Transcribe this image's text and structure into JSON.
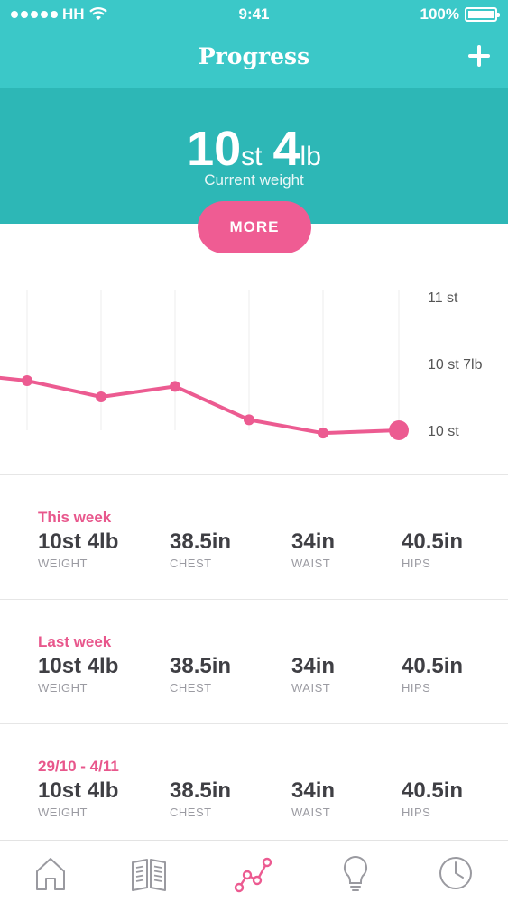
{
  "status_bar": {
    "carrier": "HH",
    "time": "9:41",
    "battery": "100%"
  },
  "nav": {
    "title": "Progress",
    "add_icon": "plus-icon"
  },
  "current": {
    "stones": "10",
    "stones_unit": "st",
    "pounds": "4",
    "pounds_unit": "lb",
    "caption": "Current weight"
  },
  "more_button": "MORE",
  "colors": {
    "teal": "#3bc8c8",
    "teal_dark": "#2db7b6",
    "pink": "#ef5c93",
    "label_pink": "#e8578c"
  },
  "chart_data": {
    "type": "line",
    "y_ticks": [
      "11 st",
      "10 st 7lb",
      "10 st"
    ],
    "ylim": [
      "10 st",
      "11 st"
    ],
    "values_lb": [
      145.6,
      145.2,
      143.5,
      144.6,
      141.1,
      139.7,
      144.0
    ],
    "note_last_point": "last point is current value 10 st 4lb, highlighted",
    "grid": "vertical lines only"
  },
  "weeks": [
    {
      "label": "This week",
      "weight": "10st 4lb",
      "chest": "38.5in",
      "waist": "34in",
      "hips": "40.5in"
    },
    {
      "label": "Last week",
      "weight": "10st 4lb",
      "chest": "38.5in",
      "waist": "34in",
      "hips": "40.5in"
    },
    {
      "label": "29/10 - 4/11",
      "weight": "10st 4lb",
      "chest": "38.5in",
      "waist": "34in",
      "hips": "40.5in"
    }
  ],
  "captions": {
    "weight": "WEIGHT",
    "chest": "CHEST",
    "waist": "WAIST",
    "hips": "HIPS"
  },
  "tabs": [
    {
      "icon": "home-icon",
      "active": false
    },
    {
      "icon": "book-icon",
      "active": false
    },
    {
      "icon": "progress-graph-icon",
      "active": true
    },
    {
      "icon": "lightbulb-icon",
      "active": false
    },
    {
      "icon": "clock-icon",
      "active": false
    }
  ]
}
